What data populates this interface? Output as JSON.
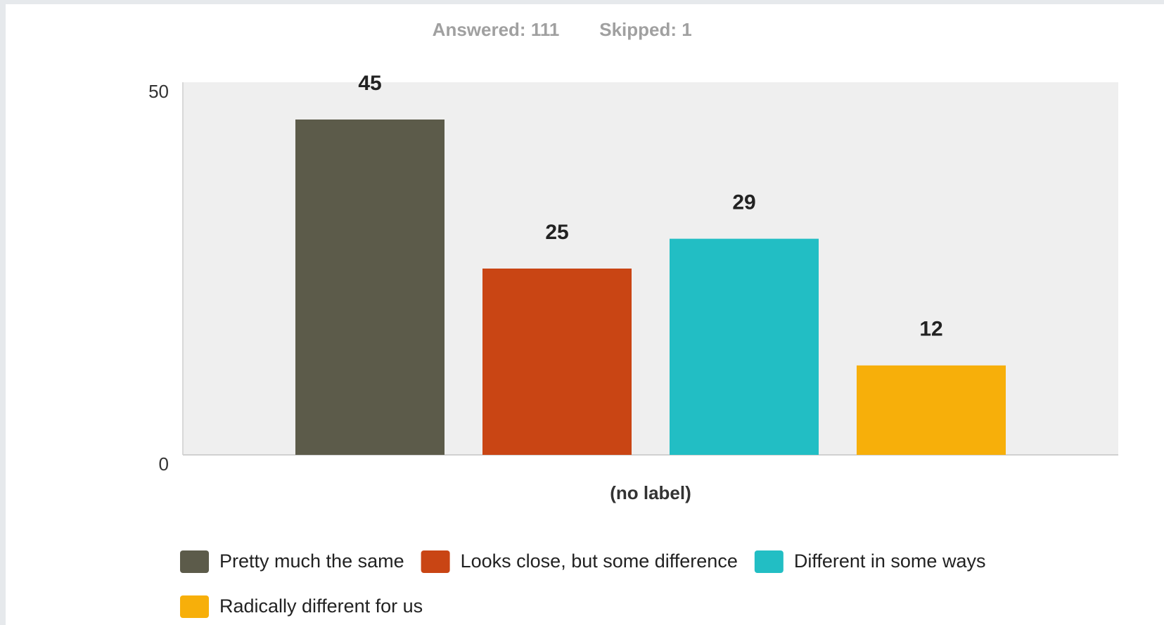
{
  "chart_data": {
    "type": "bar",
    "subtitle": [
      "Answered: 111",
      "Skipped: 1"
    ],
    "categories": [
      "(no label)"
    ],
    "series": [
      {
        "name": "Pretty much the same",
        "color": "#5c5b4a",
        "values": [
          45
        ]
      },
      {
        "name": "Looks close, but some difference",
        "color": "#c94514",
        "values": [
          25
        ]
      },
      {
        "name": "Different in some ways",
        "color": "#22bec4",
        "values": [
          29
        ]
      },
      {
        "name": "Radically different for us",
        "color": "#f7af0a",
        "values": [
          12
        ]
      }
    ],
    "ylim": [
      0,
      50
    ],
    "yticks": [
      0,
      50
    ],
    "grid": false
  }
}
